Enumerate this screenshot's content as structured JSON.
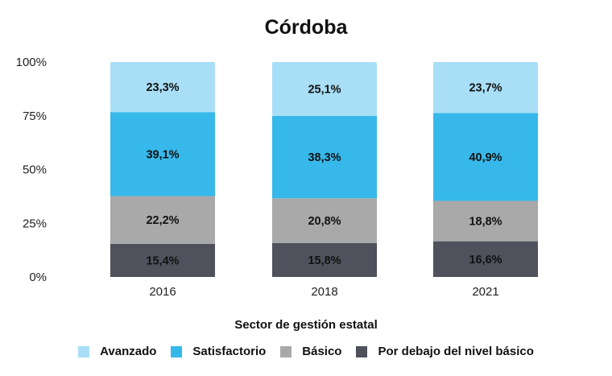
{
  "chart_data": {
    "type": "bar",
    "stacked": true,
    "title": "Córdoba",
    "xlabel": "Sector de gestión estatal",
    "ylabel": "",
    "ylim": [
      0,
      100
    ],
    "yticks": [
      "0%",
      "25%",
      "50%",
      "75%",
      "100%"
    ],
    "ytick_values": [
      0,
      25,
      50,
      75,
      100
    ],
    "grid": false,
    "legend_position": "bottom",
    "categories": [
      "2016",
      "2018",
      "2021"
    ],
    "series": [
      {
        "name": "Por debajo del nivel básico",
        "color": "#4f525c",
        "values": [
          15.4,
          15.8,
          16.6
        ],
        "labels": [
          "15,4%",
          "15,8%",
          "16,6%"
        ]
      },
      {
        "name": "Básico",
        "color": "#a9a9a9",
        "values": [
          22.2,
          20.8,
          18.8
        ],
        "labels": [
          "22,2%",
          "20,8%",
          "18,8%"
        ]
      },
      {
        "name": "Satisfactorio",
        "color": "#36b8ea",
        "values": [
          39.1,
          38.3,
          40.9
        ],
        "labels": [
          "39,1%",
          "38,3%",
          "40,9%"
        ]
      },
      {
        "name": "Avanzado",
        "color": "#a8def6",
        "values": [
          23.3,
          25.1,
          23.7
        ],
        "labels": [
          "23,3%",
          "25,1%",
          "23,7%"
        ]
      }
    ],
    "legend_order": [
      "Avanzado",
      "Satisfactorio",
      "Básico",
      "Por debajo del nivel básico"
    ]
  }
}
